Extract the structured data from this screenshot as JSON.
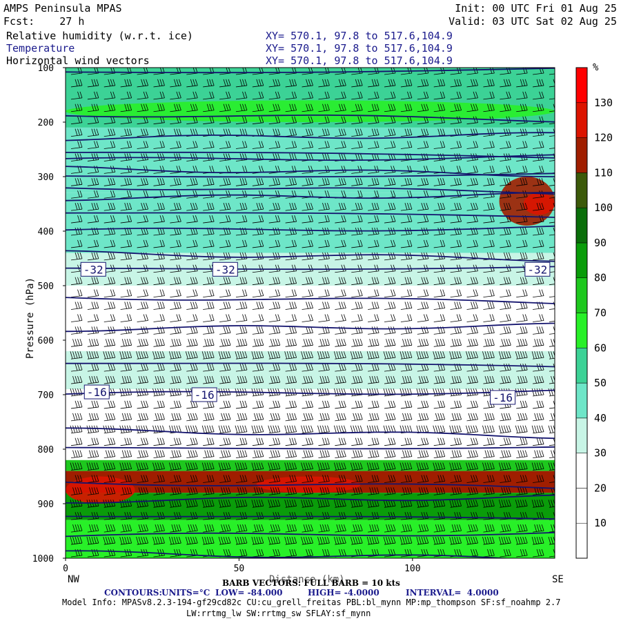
{
  "header": {
    "title": "AMPS Peninsula MPAS",
    "fcst": "Fcst:    27 h",
    "init": "Init: 00 UTC Fri 01 Aug 25",
    "valid": "Valid: 03 UTC Sat 02 Aug 25",
    "fields": [
      {
        "label": "Relative humidity (w.r.t. ice)",
        "xy": "XY= 570.1, 97.8 to 517.6,104.9"
      },
      {
        "label": "Temperature",
        "xy": "XY= 570.1, 97.8 to 517.6,104.9"
      },
      {
        "label": "Horizontal wind vectors",
        "xy": "XY= 570.1, 97.8 to 517.6,104.9"
      }
    ]
  },
  "colors": {
    "contour": "#14146e",
    "rh_scale": [
      "#ffffff",
      "#ffffff",
      "#ffffff",
      "#c8f5e6",
      "#6ee6c8",
      "#3cd296",
      "#28f028",
      "#1ec81e",
      "#0a9c0a",
      "#0a6e0a",
      "#3c5a0a",
      "#a01e00",
      "#dc1400",
      "#ff0000"
    ]
  },
  "chart_data": {
    "type": "heatmap",
    "title": "AMPS Peninsula MPAS",
    "xlabel": "Distance (km)",
    "ylabel": "Pressure (hPa)",
    "xlim": [
      0,
      141
    ],
    "ylim": [
      1000,
      100
    ],
    "x_ticks": [
      0,
      50,
      100
    ],
    "y_ticks": [
      100,
      200,
      300,
      400,
      500,
      600,
      700,
      800,
      900,
      1000
    ],
    "x_end_labels": {
      "left": "NW",
      "right": "SE"
    },
    "colorbar": {
      "unit": "%",
      "levels": [
        10,
        20,
        30,
        40,
        50,
        60,
        70,
        80,
        90,
        100,
        110,
        120,
        130
      ],
      "bounds": [
        0,
        140
      ]
    },
    "rh_layers": [
      {
        "p_top": 100,
        "p_bot": 210,
        "rh": 55
      },
      {
        "p_top": 210,
        "p_bot": 330,
        "rh": 45
      },
      {
        "p_top": 330,
        "p_bot": 440,
        "rh": 40
      },
      {
        "p_top": 440,
        "p_bot": 500,
        "rh": 32
      },
      {
        "p_top": 500,
        "p_bot": 620,
        "rh": 15
      },
      {
        "p_top": 620,
        "p_bot": 690,
        "rh": 32
      },
      {
        "p_top": 690,
        "p_bot": 820,
        "rh": 20
      },
      {
        "p_top": 820,
        "p_bot": 840,
        "rh": 70
      },
      {
        "p_top": 840,
        "p_bot": 880,
        "rh": 115
      },
      {
        "p_top": 880,
        "p_bot": 930,
        "rh": 80
      },
      {
        "p_top": 930,
        "p_bot": 1000,
        "rh": 65
      }
    ],
    "rh_patches": [
      {
        "x": [
          125,
          141
        ],
        "p": [
          300,
          390
        ],
        "rh": 110
      },
      {
        "x": [
          132,
          141
        ],
        "p": [
          330,
          370
        ],
        "rh": 125
      },
      {
        "x": [
          0,
          20
        ],
        "p": [
          850,
          900
        ],
        "rh": 125
      },
      {
        "x": [
          55,
          85
        ],
        "p": [
          850,
          880
        ],
        "rh": 120
      },
      {
        "x": [
          0,
          141
        ],
        "p": [
          160,
          200
        ],
        "rh": 65
      }
    ],
    "temperature_contour_labels": [
      {
        "text": "-32",
        "x": 8,
        "p": 470
      },
      {
        "text": "-32",
        "x": 46,
        "p": 470
      },
      {
        "text": "-32",
        "x": 136,
        "p": 470
      },
      {
        "text": "-16",
        "x": 9,
        "p": 695
      },
      {
        "text": "-16",
        "x": 40,
        "p": 700
      },
      {
        "text": "-16",
        "x": 126,
        "p": 705
      }
    ],
    "temperature_isotherm_pressures": [
      108,
      185,
      230,
      255,
      270,
      285,
      300,
      318,
      340,
      365,
      400,
      440,
      470,
      520,
      580,
      640,
      700,
      765,
      800,
      860,
      895,
      920,
      960,
      990
    ],
    "wind_barb_rows": 40,
    "wind_barb_cols": 30
  },
  "footer": {
    "barb": "BARB VECTORS: FULL BARB = 10 kts",
    "contours_label": "CONTOURS:",
    "units": "UNITS=°C",
    "low": "LOW= -84.000",
    "high": "HIGH= -4.0000",
    "interval": "INTERVAL=  4.0000",
    "model_info": "Model Info: MPASv8.2.3-194-gf29cd82c CU:cu_grell_freitas PBL:bl_mynn MP:mp_thompson SF:sf_noahmp 2.7",
    "model_info2": "LW:rrtmg_lw SW:rrtmg_sw SFLAY:sf_mynn"
  }
}
